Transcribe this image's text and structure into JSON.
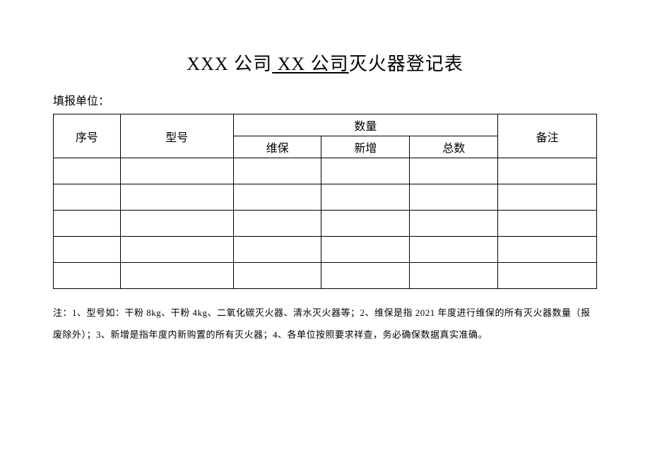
{
  "title": {
    "prefix": "XXX 公司",
    "underlined": " XX 公司",
    "suffix": "灭火器登记表"
  },
  "reporter_label": "填报单位：",
  "headers": {
    "seq": "序号",
    "model": "型号",
    "qty": "数量",
    "remark": "备注",
    "maint": "维保",
    "new": "新增",
    "total": "总数"
  },
  "rows": [
    {
      "seq": "",
      "model": "",
      "maint": "",
      "new": "",
      "total": "",
      "remark": ""
    },
    {
      "seq": "",
      "model": "",
      "maint": "",
      "new": "",
      "total": "",
      "remark": ""
    },
    {
      "seq": "",
      "model": "",
      "maint": "",
      "new": "",
      "total": "",
      "remark": ""
    },
    {
      "seq": "",
      "model": "",
      "maint": "",
      "new": "",
      "total": "",
      "remark": ""
    },
    {
      "seq": "",
      "model": "",
      "maint": "",
      "new": "",
      "total": "",
      "remark": ""
    }
  ],
  "note": "注：1、型号如：干粉 8kg、干粉 4kg、二氧化碳灭火器、清水灭火器等；2、维保是指 2021 年度进行维保的所有灭火器数量（报废除外）；3、新增是指年度内新购置的所有灭火器；4、各单位按照要求祥查，务必确保数据真实准确。",
  "style": {
    "page_bg": "#ffffff",
    "text_color": "#000000",
    "border_color": "#000000",
    "title_fontsize": 26,
    "body_fontsize": 16,
    "note_fontsize": 13,
    "data_row_height": 37,
    "header_row_height": 31,
    "num_data_rows": 5
  }
}
